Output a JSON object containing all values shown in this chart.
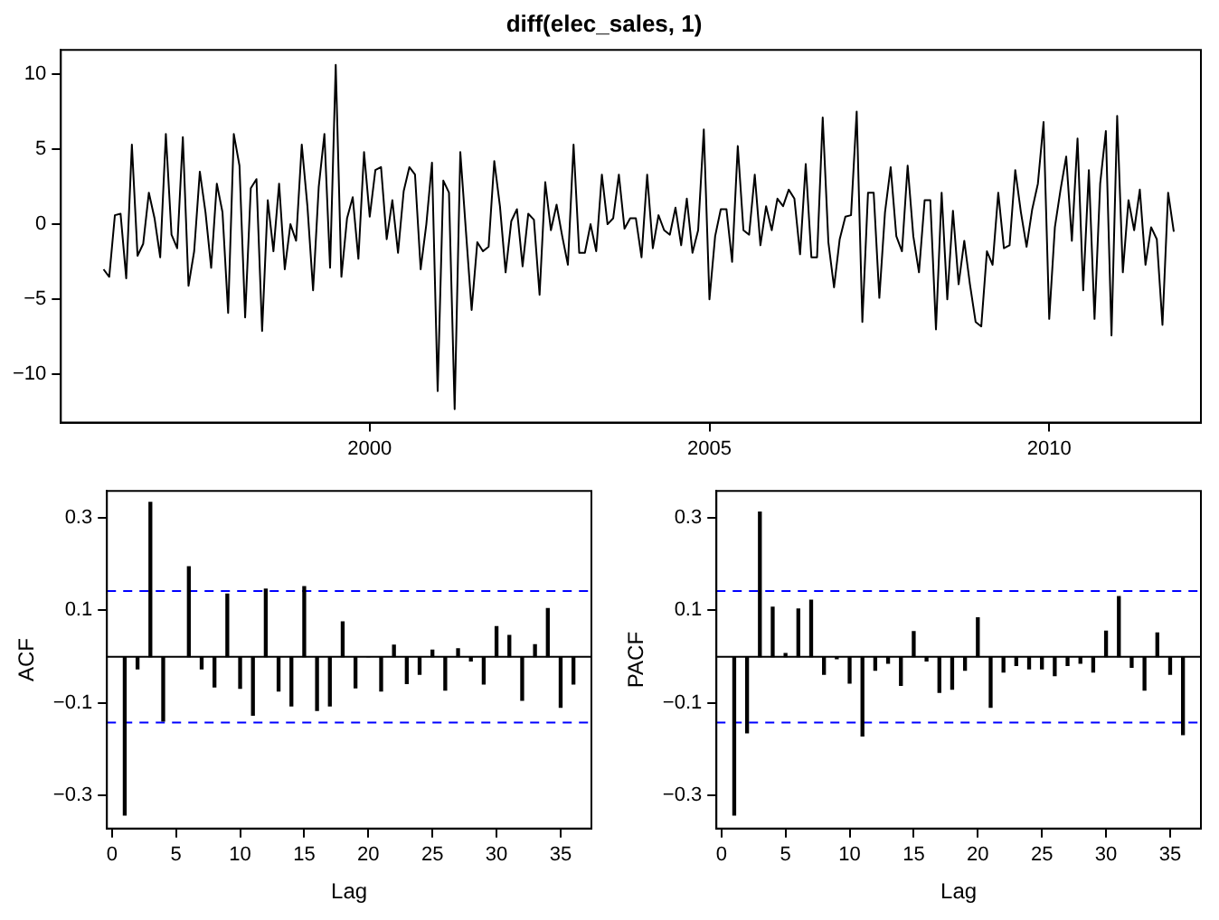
{
  "chart_data": [
    {
      "type": "line",
      "title": "diff(elec_sales, 1)",
      "color": "#000000",
      "marker": "none",
      "x": [
        "1996-02",
        "1996-03",
        "1996-04",
        "1996-05",
        "1996-06",
        "1996-07",
        "1996-08",
        "1996-09",
        "1996-10",
        "1996-11",
        "1996-12",
        "1997-01",
        "1997-02",
        "1997-03",
        "1997-04",
        "1997-05",
        "1997-06",
        "1997-07",
        "1997-08",
        "1997-09",
        "1997-10",
        "1997-11",
        "1997-12",
        "1998-01",
        "1998-02",
        "1998-03",
        "1998-04",
        "1998-05",
        "1998-06",
        "1998-07",
        "1998-08",
        "1998-09",
        "1998-10",
        "1998-11",
        "1998-12",
        "1999-01",
        "1999-02",
        "1999-03",
        "1999-04",
        "1999-05",
        "1999-06",
        "1999-07",
        "1999-08",
        "1999-09",
        "1999-10",
        "1999-11",
        "1999-12",
        "2000-01",
        "2000-02",
        "2000-03",
        "2000-04",
        "2000-05",
        "2000-06",
        "2000-07",
        "2000-08",
        "2000-09",
        "2000-10",
        "2000-11",
        "2000-12",
        "2001-01",
        "2001-02",
        "2001-03",
        "2001-04",
        "2001-05",
        "2001-06",
        "2001-07",
        "2001-08",
        "2001-09",
        "2001-10",
        "2001-11",
        "2001-12",
        "2002-01",
        "2002-02",
        "2002-03",
        "2002-04",
        "2002-05",
        "2002-06",
        "2002-07",
        "2002-08",
        "2002-09",
        "2002-10",
        "2002-11",
        "2002-12",
        "2003-01",
        "2003-02",
        "2003-03",
        "2003-04",
        "2003-05",
        "2003-06",
        "2003-07",
        "2003-08",
        "2003-09",
        "2003-10",
        "2003-11",
        "2003-12",
        "2004-01",
        "2004-02",
        "2004-03",
        "2004-04",
        "2004-05",
        "2004-06",
        "2004-07",
        "2004-08",
        "2004-09",
        "2004-10",
        "2004-11",
        "2004-12",
        "2005-01",
        "2005-02",
        "2005-03",
        "2005-04",
        "2005-05",
        "2005-06",
        "2005-07",
        "2005-08",
        "2005-09",
        "2005-10",
        "2005-11",
        "2005-12",
        "2006-01",
        "2006-02",
        "2006-03",
        "2006-04",
        "2006-05",
        "2006-06",
        "2006-07",
        "2006-08",
        "2006-09",
        "2006-10",
        "2006-11",
        "2006-12",
        "2007-01",
        "2007-02",
        "2007-03",
        "2007-04",
        "2007-05",
        "2007-06",
        "2007-07",
        "2007-08",
        "2007-09",
        "2007-10",
        "2007-11",
        "2007-12",
        "2008-01",
        "2008-02",
        "2008-03",
        "2008-04",
        "2008-05",
        "2008-06",
        "2008-07",
        "2008-08",
        "2008-09",
        "2008-10",
        "2008-11",
        "2008-12",
        "2009-01",
        "2009-02",
        "2009-03",
        "2009-04",
        "2009-05",
        "2009-06",
        "2009-07",
        "2009-08",
        "2009-09",
        "2009-10",
        "2009-11",
        "2009-12",
        "2010-01",
        "2010-02",
        "2010-03",
        "2010-04",
        "2010-05",
        "2010-06",
        "2010-07",
        "2010-08",
        "2010-09",
        "2010-10",
        "2010-11",
        "2010-12",
        "2011-01",
        "2011-02",
        "2011-03",
        "2011-04",
        "2011-05",
        "2011-06",
        "2011-07",
        "2011-08",
        "2011-09",
        "2011-10",
        "2011-11"
      ],
      "values": [
        -3.0,
        -3.5,
        0.6,
        0.7,
        -3.6,
        5.3,
        -2.1,
        -1.3,
        2.1,
        0.4,
        -2.2,
        6.0,
        -0.7,
        -1.6,
        5.8,
        -4.1,
        -1.8,
        3.5,
        0.8,
        -2.9,
        2.7,
        0.8,
        -5.9,
        6.0,
        3.9,
        -6.2,
        2.4,
        3.0,
        -7.1,
        1.6,
        -1.8,
        2.7,
        -3.0,
        0.0,
        -1.1,
        5.3,
        1.2,
        -4.4,
        2.5,
        6.0,
        -2.9,
        10.6,
        -3.5,
        0.4,
        1.8,
        -2.3,
        4.8,
        0.5,
        3.6,
        3.8,
        -1.0,
        1.6,
        -1.9,
        2.2,
        3.8,
        3.3,
        -3.0,
        0.0,
        4.1,
        -11.1,
        2.9,
        2.1,
        -12.3,
        4.8,
        -0.5,
        -5.7,
        -1.2,
        -1.8,
        -1.5,
        4.2,
        1.2,
        -3.2,
        0.2,
        1.0,
        -2.8,
        0.7,
        0.3,
        -4.7,
        2.8,
        -0.4,
        1.3,
        -0.8,
        -2.7,
        5.3,
        -1.9,
        -1.9,
        0.0,
        -1.8,
        3.3,
        0.0,
        0.4,
        3.3,
        -0.3,
        0.4,
        0.4,
        -2.2,
        3.3,
        -1.6,
        0.6,
        -0.4,
        -0.7,
        1.1,
        -1.4,
        1.7,
        -1.9,
        -0.4,
        6.3,
        -5.0,
        -0.8,
        1.0,
        1.0,
        -2.5,
        5.2,
        -0.4,
        -0.7,
        3.3,
        -1.4,
        1.2,
        -0.4,
        1.7,
        1.2,
        2.3,
        1.7,
        -2.0,
        4.0,
        -2.2,
        -2.2,
        7.1,
        -1.2,
        -4.2,
        -1.0,
        0.5,
        0.6,
        7.5,
        -6.5,
        2.1,
        2.1,
        -4.9,
        0.8,
        3.8,
        -0.8,
        -1.8,
        3.9,
        -0.8,
        -3.2,
        1.6,
        1.6,
        -7.0,
        2.1,
        -5.0,
        0.9,
        -4.0,
        -1.1,
        -4.0,
        -6.5,
        -6.8,
        -1.8,
        -2.7,
        2.1,
        -1.6,
        -1.4,
        3.6,
        0.8,
        -1.5,
        1.0,
        2.7,
        6.8,
        -6.3,
        -0.2,
        2.3,
        4.5,
        -1.1,
        5.7,
        -4.4,
        3.6,
        -6.3,
        2.7,
        6.2,
        -7.4,
        7.2,
        -3.2,
        1.6,
        -0.4,
        2.3,
        -2.7,
        -0.2,
        -1.0,
        -6.7,
        2.1,
        -0.5
      ],
      "xlim": [
        "1995-06-15",
        "2012-03-25"
      ],
      "xticks": [
        "2000",
        "2005",
        "2010"
      ],
      "ylim": [
        -13.2,
        11.6
      ],
      "yticks": [
        {
          "value": -10,
          "label": "−10"
        },
        {
          "value": -5,
          "label": "−5"
        },
        0,
        5,
        10
      ]
    },
    {
      "type": "bar",
      "xlabel": "Lag",
      "ylabel": "ACF",
      "color": "#000000",
      "x": [
        1,
        2,
        3,
        4,
        5,
        6,
        7,
        8,
        9,
        10,
        11,
        12,
        13,
        14,
        15,
        16,
        17,
        18,
        19,
        20,
        21,
        22,
        23,
        24,
        25,
        26,
        27,
        28,
        29,
        30,
        31,
        32,
        33,
        34,
        35,
        36
      ],
      "values": [
        -0.342,
        -0.026,
        0.333,
        -0.139,
        null,
        0.194,
        -0.026,
        -0.065,
        0.135,
        -0.068,
        -0.126,
        0.146,
        -0.074,
        -0.106,
        0.151,
        -0.116,
        -0.106,
        0.075,
        -0.067,
        0.0,
        -0.074,
        0.025,
        -0.058,
        -0.038,
        0.014,
        -0.072,
        0.017,
        -0.009,
        -0.059,
        0.065,
        0.046,
        -0.094,
        0.026,
        0.104,
        -0.109,
        -0.059
      ],
      "xlim": [
        -0.39,
        37.4
      ],
      "xticks": [
        0,
        5,
        10,
        15,
        20,
        25,
        30,
        35
      ],
      "ylim": [
        -0.371,
        0.358
      ],
      "yticks": [
        {
          "value": -0.3,
          "label": "−0.3"
        },
        {
          "value": -0.1,
          "label": "−0.1"
        },
        0.1,
        0.3
      ],
      "ref_lines": [
        {
          "axis": "y",
          "value": 0,
          "color": "#000000"
        },
        {
          "axis": "y",
          "value": 0.142,
          "color": "#0000ff",
          "line_style": "dashed"
        },
        {
          "axis": "y",
          "value": -0.142,
          "color": "#0000ff",
          "line_style": "dashed"
        }
      ]
    },
    {
      "type": "bar",
      "xlabel": "Lag",
      "ylabel": "PACF",
      "color": "#000000",
      "x": [
        1,
        2,
        3,
        4,
        5,
        6,
        7,
        8,
        9,
        10,
        11,
        12,
        13,
        14,
        15,
        16,
        17,
        18,
        19,
        20,
        21,
        22,
        23,
        24,
        25,
        26,
        27,
        28,
        29,
        30,
        31,
        32,
        33,
        34,
        35,
        36
      ],
      "values": [
        -0.342,
        -0.164,
        0.312,
        0.107,
        0.007,
        0.103,
        0.122,
        -0.038,
        -0.004,
        -0.057,
        -0.171,
        -0.029,
        -0.014,
        -0.062,
        0.054,
        -0.009,
        -0.077,
        -0.07,
        -0.029,
        0.084,
        -0.109,
        -0.033,
        -0.019,
        -0.026,
        -0.026,
        -0.041,
        -0.019,
        -0.014,
        -0.033,
        0.055,
        0.13,
        -0.023,
        -0.072,
        0.051,
        -0.038,
        -0.168
      ],
      "xlim": [
        -0.39,
        37.4
      ],
      "xticks": [
        0,
        5,
        10,
        15,
        20,
        25,
        30,
        35
      ],
      "ylim": [
        -0.371,
        0.358
      ],
      "yticks": [
        {
          "value": -0.3,
          "label": "−0.3"
        },
        {
          "value": -0.1,
          "label": "−0.1"
        },
        0.1,
        0.3
      ],
      "ref_lines": [
        {
          "axis": "y",
          "value": 0,
          "color": "#000000"
        },
        {
          "axis": "y",
          "value": 0.142,
          "color": "#0000ff",
          "line_style": "dashed"
        },
        {
          "axis": "y",
          "value": -0.142,
          "color": "#0000ff",
          "line_style": "dashed"
        }
      ]
    }
  ]
}
